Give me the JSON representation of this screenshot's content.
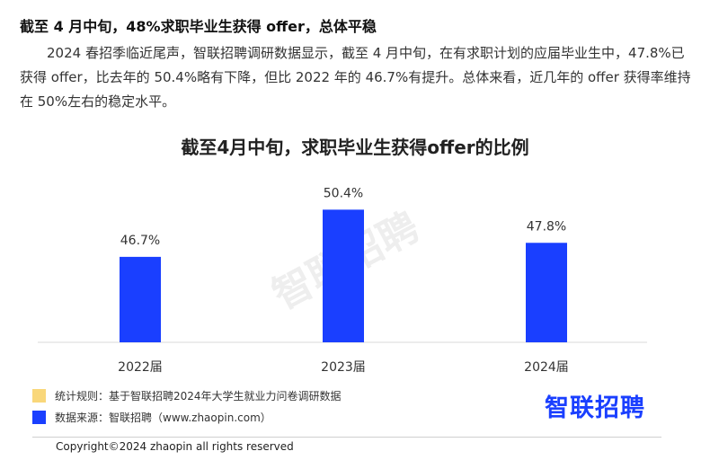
{
  "article": {
    "headline": "截至 4 月中旬，48%求职毕业生获得 offer，总体平稳",
    "paragraph": "2024 春招季临近尾声，智联招聘调研数据显示，截至 4 月中旬，在有求职计划的应届毕业生中，47.8%已获得 offer，比去年的 50.4%略有下降，但比 2022 年的 46.7%有提升。总体来看，近几年的 offer 获得率维持在 50%左右的稳定水平。"
  },
  "chart_data": {
    "type": "bar",
    "title": "截至4月中旬，求职毕业生获得offer的比例",
    "categories": [
      "2022届",
      "2023届",
      "2024届"
    ],
    "values": [
      46.7,
      50.4,
      47.8
    ],
    "value_labels": [
      "46.7%",
      "50.4%",
      "47.8%"
    ],
    "xlabel": "",
    "ylabel": "",
    "ylim": [
      40,
      51.2
    ],
    "grid": false,
    "bar_color": "#1a3fff"
  },
  "footer": {
    "rule_label": "统计规则：基于智联招聘2024年大学生就业力问卷调研数据",
    "source_label": "数据来源：智联招聘（www.zhaopin.com）",
    "rule_color": "#f9d77a",
    "source_color": "#1a3fff",
    "logo_text": "智联招聘",
    "copyright": "Copyright©2024 zhaopin all rights reserved"
  },
  "watermark": "智联招聘"
}
